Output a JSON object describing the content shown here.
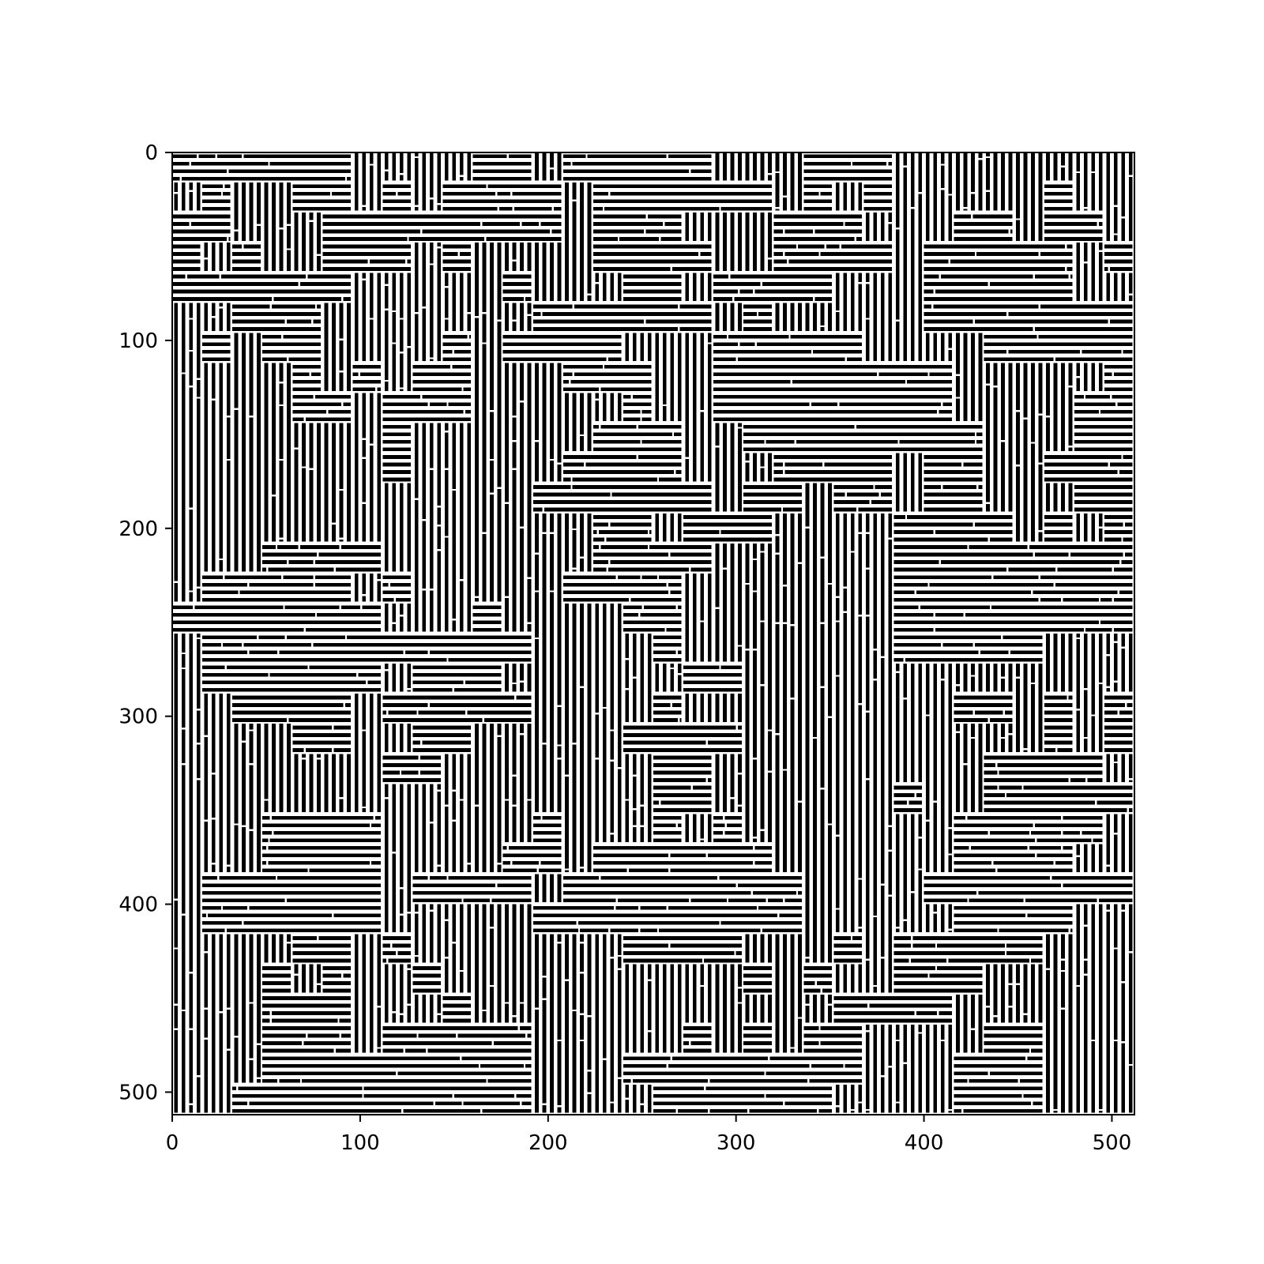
{
  "chart_data": {
    "type": "heatmap",
    "image_size": [
      512,
      512
    ],
    "colormap": "binary (black and white)",
    "pattern": "labyrinth of short parallel black and white stripes, with patches alternating between horizontal and vertical orientation",
    "stripe_period": 4,
    "title": "",
    "xlabel": "",
    "ylabel": "",
    "xlim": [
      0,
      512
    ],
    "ylim": [
      512,
      0
    ],
    "x_ticks": [
      0,
      100,
      200,
      300,
      400,
      500
    ],
    "y_ticks": [
      0,
      100,
      200,
      300,
      400,
      500
    ],
    "x_tick_labels": [
      "0",
      "100",
      "200",
      "300",
      "400",
      "500"
    ],
    "y_tick_labels": [
      "0",
      "100",
      "200",
      "300",
      "400",
      "500"
    ],
    "grid": false,
    "legend": "none"
  }
}
